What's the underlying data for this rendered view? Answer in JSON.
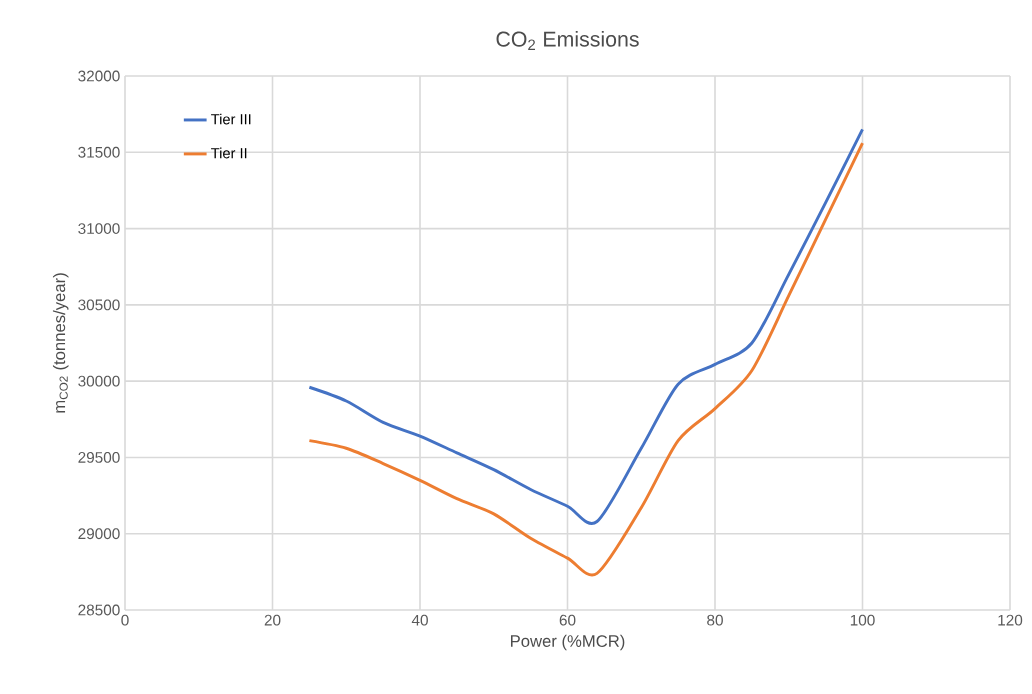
{
  "chart_data": {
    "type": "line",
    "title": "CO$_{2}$ Emissions",
    "xlabel": "Power (%MCR)",
    "ylabel": "m$_{CO2}$ (tonnes/year)",
    "x": [
      25,
      30,
      35,
      40,
      45,
      50,
      55,
      60,
      64,
      70,
      75,
      80,
      85,
      90,
      95,
      100
    ],
    "series": [
      {
        "name": "Tier III",
        "color": "#4472c4",
        "values": [
          29960,
          29870,
          29730,
          29640,
          29530,
          29420,
          29290,
          29180,
          29080,
          29560,
          29980,
          30110,
          30250,
          30700,
          31170,
          31650
        ]
      },
      {
        "name": "Tier II",
        "color": "#ed7d31",
        "values": [
          29610,
          29560,
          29460,
          29350,
          29230,
          29130,
          28970,
          28840,
          28740,
          29170,
          29610,
          29820,
          30070,
          30560,
          31060,
          31560
        ]
      }
    ],
    "xlim": [
      0,
      120
    ],
    "xticks": [
      0,
      20,
      40,
      60,
      80,
      100,
      120
    ],
    "ylim": [
      28500,
      32000
    ],
    "yticks": [
      28500,
      29000,
      29500,
      30000,
      30500,
      31000,
      31500,
      32000
    ],
    "grid": true,
    "legend": "top left",
    "marker": "none",
    "line_style": "solid"
  }
}
